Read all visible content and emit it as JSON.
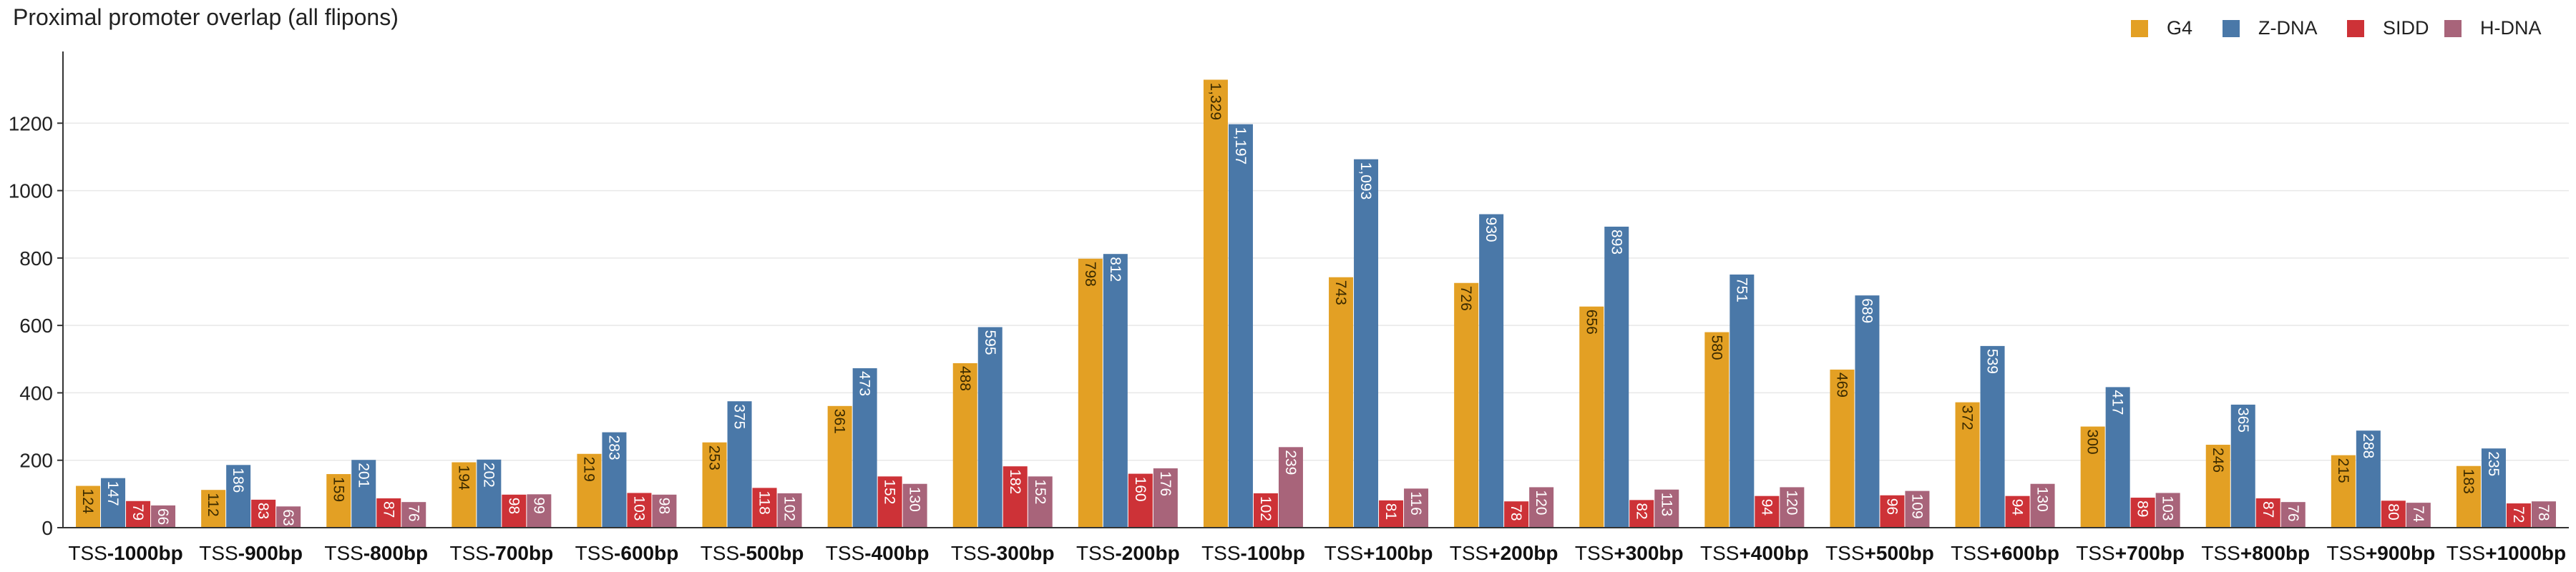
{
  "chart_data": {
    "type": "bar",
    "title": "Proximal promoter overlap (all flipons)",
    "xlabel": "",
    "ylabel": "",
    "ylim": [
      0,
      1400
    ],
    "yticks": [
      0,
      200,
      400,
      600,
      800,
      1000,
      1200
    ],
    "grid": true,
    "legend_position": "top-right",
    "categories": [
      {
        "prefix": "TSS",
        "offset": "-1000bp"
      },
      {
        "prefix": "TSS",
        "offset": "-900bp"
      },
      {
        "prefix": "TSS",
        "offset": "-800bp"
      },
      {
        "prefix": "TSS",
        "offset": "-700bp"
      },
      {
        "prefix": "TSS",
        "offset": "-600bp"
      },
      {
        "prefix": "TSS",
        "offset": "-500bp"
      },
      {
        "prefix": "TSS",
        "offset": "-400bp"
      },
      {
        "prefix": "TSS",
        "offset": "-300bp"
      },
      {
        "prefix": "TSS",
        "offset": "-200bp"
      },
      {
        "prefix": "TSS",
        "offset": "-100bp"
      },
      {
        "prefix": "TSS",
        "offset": "+100bp"
      },
      {
        "prefix": "TSS",
        "offset": "+200bp"
      },
      {
        "prefix": "TSS",
        "offset": "+300bp"
      },
      {
        "prefix": "TSS",
        "offset": "+400bp"
      },
      {
        "prefix": "TSS",
        "offset": "+500bp"
      },
      {
        "prefix": "TSS",
        "offset": "+600bp"
      },
      {
        "prefix": "TSS",
        "offset": "+700bp"
      },
      {
        "prefix": "TSS",
        "offset": "+800bp"
      },
      {
        "prefix": "TSS",
        "offset": "+900bp"
      },
      {
        "prefix": "TSS",
        "offset": "+1000bp"
      }
    ],
    "series": [
      {
        "name": "G4",
        "color": "#E3A024",
        "label_color": "#3a2a00",
        "values": [
          124,
          112,
          159,
          194,
          219,
          253,
          361,
          488,
          798,
          1329,
          743,
          726,
          656,
          580,
          469,
          372,
          300,
          246,
          215,
          183
        ]
      },
      {
        "name": "Z-DNA",
        "color": "#4A78A8",
        "label_color": "#ffffff",
        "values": [
          147,
          186,
          201,
          202,
          283,
          375,
          473,
          595,
          812,
          1197,
          1093,
          930,
          893,
          751,
          689,
          539,
          417,
          365,
          288,
          235
        ]
      },
      {
        "name": "SIDD",
        "color": "#CD3237",
        "label_color": "#ffffff",
        "values": [
          79,
          83,
          87,
          98,
          103,
          118,
          152,
          182,
          160,
          102,
          81,
          78,
          82,
          94,
          96,
          94,
          89,
          87,
          80,
          72
        ]
      },
      {
        "name": "H-DNA",
        "color": "#A8647A",
        "label_color": "#ffffff",
        "values": [
          66,
          63,
          76,
          99,
          98,
          102,
          130,
          152,
          176,
          239,
          116,
          120,
          113,
          120,
          109,
          130,
          103,
          76,
          74,
          78
        ]
      }
    ]
  }
}
